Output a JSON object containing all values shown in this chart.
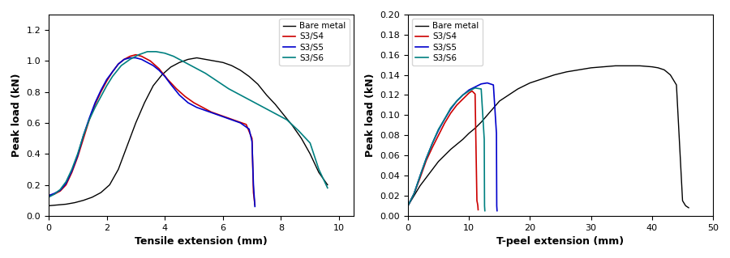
{
  "left": {
    "title": "",
    "xlabel": "Tensile extension (mm)",
    "ylabel": "Peak load (kN)",
    "xlim": [
      0,
      10.5
    ],
    "ylim": [
      0,
      1.3
    ],
    "yticks": [
      0.0,
      0.2,
      0.4,
      0.6,
      0.8,
      1.0,
      1.2
    ],
    "xticks": [
      0,
      2,
      4,
      6,
      8,
      10
    ],
    "legend_labels": [
      "Bare metal",
      "S3/S4",
      "S3/S5",
      "S3/S6"
    ],
    "colors": [
      "#000000",
      "#cc0000",
      "#0000cc",
      "#008080"
    ],
    "series": {
      "bare_metal": {
        "x": [
          0,
          0.3,
          0.6,
          0.9,
          1.2,
          1.5,
          1.8,
          2.1,
          2.4,
          2.7,
          3.0,
          3.3,
          3.6,
          3.9,
          4.2,
          4.5,
          4.8,
          5.1,
          5.4,
          5.7,
          6.0,
          6.3,
          6.6,
          6.9,
          7.2,
          7.5,
          7.8,
          8.1,
          8.4,
          8.7,
          9.0,
          9.3,
          9.6
        ],
        "y": [
          0.065,
          0.07,
          0.075,
          0.085,
          0.1,
          0.12,
          0.15,
          0.2,
          0.3,
          0.45,
          0.6,
          0.73,
          0.84,
          0.91,
          0.96,
          0.99,
          1.01,
          1.02,
          1.01,
          1.0,
          0.99,
          0.97,
          0.94,
          0.9,
          0.85,
          0.78,
          0.72,
          0.65,
          0.58,
          0.5,
          0.4,
          0.28,
          0.2
        ]
      },
      "s3s4": {
        "x": [
          0,
          0.2,
          0.4,
          0.6,
          0.8,
          1.0,
          1.2,
          1.4,
          1.6,
          1.8,
          2.0,
          2.2,
          2.4,
          2.6,
          2.8,
          3.0,
          3.2,
          3.5,
          3.8,
          4.1,
          4.4,
          4.7,
          5.0,
          5.3,
          5.6,
          5.9,
          6.2,
          6.5,
          6.8,
          7.0,
          7.05,
          7.1
        ],
        "y": [
          0.13,
          0.14,
          0.16,
          0.2,
          0.28,
          0.38,
          0.5,
          0.62,
          0.72,
          0.8,
          0.87,
          0.93,
          0.98,
          1.01,
          1.03,
          1.04,
          1.03,
          1.0,
          0.95,
          0.88,
          0.82,
          0.77,
          0.73,
          0.7,
          0.67,
          0.65,
          0.63,
          0.61,
          0.59,
          0.5,
          0.15,
          0.07
        ]
      },
      "s3s5": {
        "x": [
          0,
          0.2,
          0.4,
          0.6,
          0.8,
          1.0,
          1.2,
          1.4,
          1.6,
          1.8,
          2.0,
          2.2,
          2.4,
          2.6,
          2.8,
          3.0,
          3.2,
          3.4,
          3.6,
          3.8,
          4.0,
          4.2,
          4.5,
          4.8,
          5.1,
          5.4,
          5.7,
          6.0,
          6.3,
          6.6,
          6.9,
          7.0,
          7.05,
          7.1
        ],
        "y": [
          0.13,
          0.145,
          0.165,
          0.21,
          0.29,
          0.39,
          0.52,
          0.63,
          0.73,
          0.81,
          0.88,
          0.93,
          0.98,
          1.01,
          1.02,
          1.02,
          1.01,
          0.99,
          0.97,
          0.94,
          0.9,
          0.85,
          0.78,
          0.73,
          0.7,
          0.68,
          0.66,
          0.64,
          0.62,
          0.6,
          0.56,
          0.48,
          0.2,
          0.06
        ]
      },
      "s3s6": {
        "x": [
          0,
          0.2,
          0.4,
          0.6,
          0.8,
          1.0,
          1.2,
          1.4,
          1.6,
          1.8,
          2.0,
          2.2,
          2.5,
          2.8,
          3.1,
          3.4,
          3.7,
          4.0,
          4.3,
          4.6,
          5.0,
          5.4,
          5.8,
          6.2,
          6.6,
          7.0,
          7.4,
          7.8,
          8.2,
          8.6,
          9.0,
          9.3,
          9.6
        ],
        "y": [
          0.12,
          0.14,
          0.17,
          0.22,
          0.3,
          0.4,
          0.52,
          0.62,
          0.7,
          0.77,
          0.84,
          0.9,
          0.97,
          1.01,
          1.04,
          1.06,
          1.06,
          1.05,
          1.03,
          1.0,
          0.96,
          0.92,
          0.87,
          0.82,
          0.78,
          0.74,
          0.7,
          0.66,
          0.62,
          0.55,
          0.47,
          0.3,
          0.18
        ]
      }
    }
  },
  "right": {
    "title": "",
    "xlabel": "T-peel extension (mm)",
    "ylabel": "Peak load (kN)",
    "xlim": [
      0,
      50
    ],
    "ylim": [
      0,
      0.2
    ],
    "yticks": [
      0.0,
      0.02,
      0.04,
      0.06,
      0.08,
      0.1,
      0.12,
      0.14,
      0.16,
      0.18,
      0.2
    ],
    "xticks": [
      0,
      10,
      20,
      30,
      40,
      50
    ],
    "legend_labels": [
      "Bare metal",
      "S3/S4",
      "S3/S5",
      "S3/S6"
    ],
    "colors": [
      "#000000",
      "#cc0000",
      "#0000cc",
      "#008080"
    ],
    "series": {
      "bare_metal": {
        "x": [
          0,
          1,
          2,
          3,
          4,
          5,
          6,
          7,
          8,
          9,
          10,
          11,
          12,
          13,
          14,
          15,
          16,
          17,
          18,
          19,
          20,
          22,
          24,
          26,
          28,
          30,
          32,
          34,
          36,
          38,
          40,
          41,
          42,
          43,
          44,
          45,
          45.5,
          46
        ],
        "y": [
          0.01,
          0.02,
          0.03,
          0.038,
          0.046,
          0.054,
          0.06,
          0.066,
          0.071,
          0.076,
          0.082,
          0.087,
          0.093,
          0.1,
          0.107,
          0.114,
          0.118,
          0.122,
          0.126,
          0.129,
          0.132,
          0.136,
          0.14,
          0.143,
          0.145,
          0.147,
          0.148,
          0.149,
          0.149,
          0.149,
          0.148,
          0.147,
          0.145,
          0.14,
          0.13,
          0.015,
          0.01,
          0.008
        ]
      },
      "s3s4": {
        "x": [
          0,
          1,
          2,
          3,
          4,
          5,
          6,
          7,
          8,
          9,
          10,
          10.5,
          11.0,
          11.3,
          11.4,
          11.45,
          11.5
        ],
        "y": [
          0.01,
          0.022,
          0.038,
          0.055,
          0.068,
          0.08,
          0.092,
          0.102,
          0.11,
          0.116,
          0.122,
          0.124,
          0.121,
          0.015,
          0.012,
          0.01,
          0.006
        ]
      },
      "s3s5": {
        "x": [
          0,
          1,
          2,
          3,
          4,
          5,
          6,
          7,
          8,
          9,
          10,
          11,
          12,
          13,
          14,
          14.5,
          14.55,
          14.6
        ],
        "y": [
          0.01,
          0.022,
          0.04,
          0.057,
          0.072,
          0.085,
          0.096,
          0.106,
          0.114,
          0.12,
          0.125,
          0.128,
          0.131,
          0.132,
          0.13,
          0.082,
          0.01,
          0.005
        ]
      },
      "s3s6": {
        "x": [
          0,
          1,
          2,
          3,
          4,
          5,
          6,
          7,
          8,
          9,
          10,
          11,
          12,
          12.5,
          12.55,
          12.6
        ],
        "y": [
          0.01,
          0.022,
          0.04,
          0.057,
          0.072,
          0.086,
          0.096,
          0.107,
          0.114,
          0.12,
          0.124,
          0.127,
          0.126,
          0.076,
          0.01,
          0.005
        ]
      }
    }
  }
}
